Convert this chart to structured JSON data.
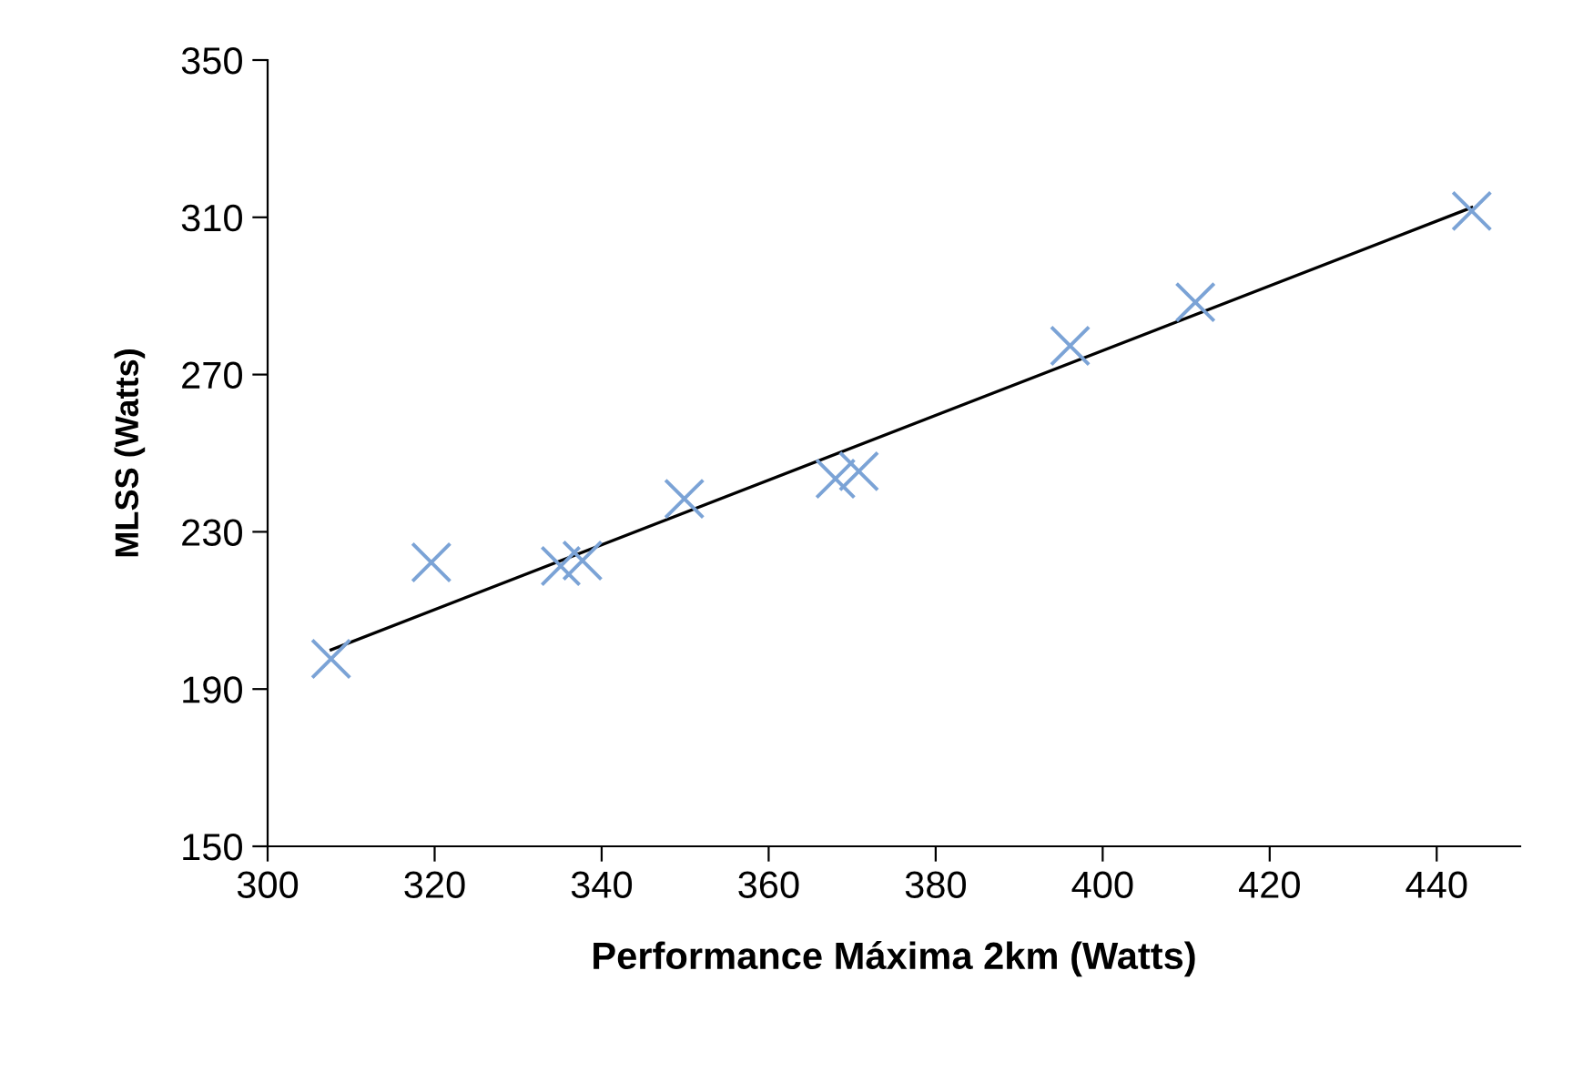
{
  "chart_data": {
    "type": "scatter",
    "xlabel": "Performance Máxima 2km (Watts)",
    "ylabel": "MLSS (Watts)",
    "xlim": [
      300,
      450
    ],
    "xticks": [
      300,
      320,
      340,
      360,
      380,
      400,
      420,
      440
    ],
    "ylim": [
      150,
      350
    ],
    "yticks": [
      150,
      190,
      230,
      270,
      310,
      350
    ],
    "grid": false,
    "legend": false,
    "marker": "cross",
    "series": [
      {
        "color": "#7ba3d6",
        "x": [
          307.6,
          319.6,
          335.1,
          337.7,
          349.9,
          368.0,
          370.8,
          396.1,
          411.1,
          444.2
        ],
        "values": [
          197.7,
          222.2,
          221.3,
          222.7,
          238.4,
          243.5,
          245.4,
          277.3,
          288.4,
          311.6
        ]
      },
      {
        "type": "line",
        "color": "#000000",
        "x": [
          307.6,
          444.2
        ],
        "values": [
          200.0,
          312.5
        ],
        "marker": "none",
        "line_style": "solid"
      }
    ]
  }
}
